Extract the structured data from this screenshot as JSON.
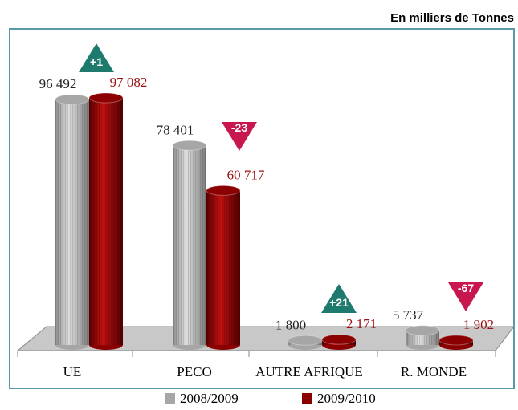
{
  "chart_data": {
    "type": "bar3d",
    "unit_note": "En milliers de Tonnes",
    "categories": [
      "UE",
      "PECO",
      "AUTRE AFRIQUE",
      "R. MONDE"
    ],
    "series": [
      {
        "name": "2008/2009",
        "color": "#a6a6a6",
        "values": [
          96492,
          78401,
          1800,
          5737
        ],
        "value_labels": [
          "96 492",
          "78 401",
          "1 800",
          "5 737"
        ]
      },
      {
        "name": "2009/2010",
        "color": "#8b0000",
        "values": [
          97082,
          60717,
          2171,
          1902
        ],
        "value_labels": [
          "97 082",
          "60 717",
          "2 171",
          "1 902"
        ]
      }
    ],
    "annotations": [
      "+1",
      "-23",
      "+21",
      "-67"
    ]
  }
}
